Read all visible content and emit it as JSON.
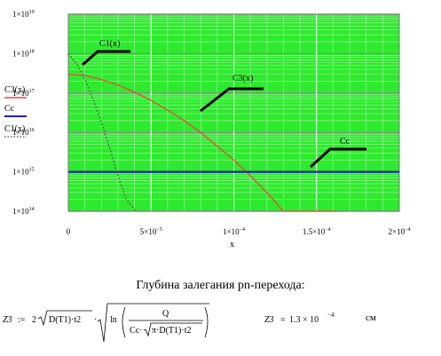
{
  "chart_data": {
    "type": "line",
    "xlabel": "x",
    "y_scale": "log",
    "xlim": [
      0,
      0.0002
    ],
    "ylim": [
      100000000000000.0,
      1e+19
    ],
    "x_ticks": [
      {
        "v": 0,
        "man": "0",
        "exp": ""
      },
      {
        "v": 5e-05,
        "man": "5×10",
        "exp": "−5"
      },
      {
        "v": 0.0001,
        "man": "1×10",
        "exp": "−4"
      },
      {
        "v": 0.00015,
        "man": "1.5×10",
        "exp": "−4"
      },
      {
        "v": 0.0002,
        "man": "2×10",
        "exp": "−4"
      }
    ],
    "y_ticks": [
      {
        "v": 100000000000000.0,
        "man": "1×10",
        "exp": "14"
      },
      {
        "v": 1000000000000000.0,
        "man": "1×10",
        "exp": "15"
      },
      {
        "v": 1e+16,
        "man": "1×10",
        "exp": "16"
      },
      {
        "v": 1e+17,
        "man": "1×10",
        "exp": "17"
      },
      {
        "v": 1e+18,
        "man": "1×10",
        "exp": "18"
      },
      {
        "v": 1e+19,
        "man": "1×10",
        "exp": "19"
      }
    ],
    "grid": true,
    "legend_position": "left",
    "series": [
      {
        "name": "C3(x)",
        "color": "#e8473b",
        "style": "solid",
        "x": [
          0,
          1e-05,
          2e-05,
          3e-05,
          4e-05,
          5e-05,
          6e-05,
          7e-05,
          8e-05,
          9e-05,
          0.0001,
          0.00011,
          0.00012,
          0.00013,
          0.00014,
          0.00015,
          0.00016,
          0.000162
        ],
        "y": [
          3e+17,
          2.8e+17,
          2.2e+17,
          1.6e+17,
          1.05e+17,
          6.5e+16,
          3.7e+16,
          2e+16,
          1e+16,
          4500000000000000.0,
          2000000000000000.0,
          800000000000000.0,
          300000000000000.0,
          100000000000000.0,
          100000000000000.0,
          100000000000000.0,
          100000000000000.0,
          100000000000000.0
        ]
      },
      {
        "name": "Cc",
        "color": "#2323a8",
        "style": "solid",
        "x": [
          0,
          0.0002
        ],
        "y": [
          1000000000000000.0,
          1000000000000000.0
        ]
      },
      {
        "name": "C1(x)",
        "color": "#444444",
        "style": "dotted",
        "x": [
          0,
          5e-06,
          1e-05,
          1.5e-05,
          2e-05,
          2.5e-05,
          3e-05,
          3.5e-05,
          4e-05,
          4.15e-05
        ],
        "y": [
          1e+18,
          5.5e+17,
          2.2e+17,
          7e+16,
          1.8e+16,
          4000000000000000.0,
          800000000000000.0,
          200000000000000.0,
          110000000000000.0,
          100000000000000.0
        ]
      }
    ],
    "annotations": [
      {
        "text": "C1(x)",
        "x": 8e-06,
        "y": 2e+18
      },
      {
        "text": "C3(x)",
        "x": 8e-05,
        "y": 5e+16
      },
      {
        "text": "Cc",
        "x": 0.00015,
        "y": 2000000000000000.0
      }
    ]
  },
  "caption": "Глубина залегания pn-перехода:",
  "formula": {
    "lhs": "Z3",
    "assign": ":=",
    "coef": "2",
    "sqrt_d": "D(T1)·t2",
    "ln": "ln",
    "num": "Q",
    "den_a": "Cc·",
    "den_sqrt": "π·D(T1)·t2",
    "result_lhs": "Z3",
    "result_eq": "=",
    "result_man": "1.3 × 10",
    "result_exp": "−4",
    "unit": "см"
  }
}
